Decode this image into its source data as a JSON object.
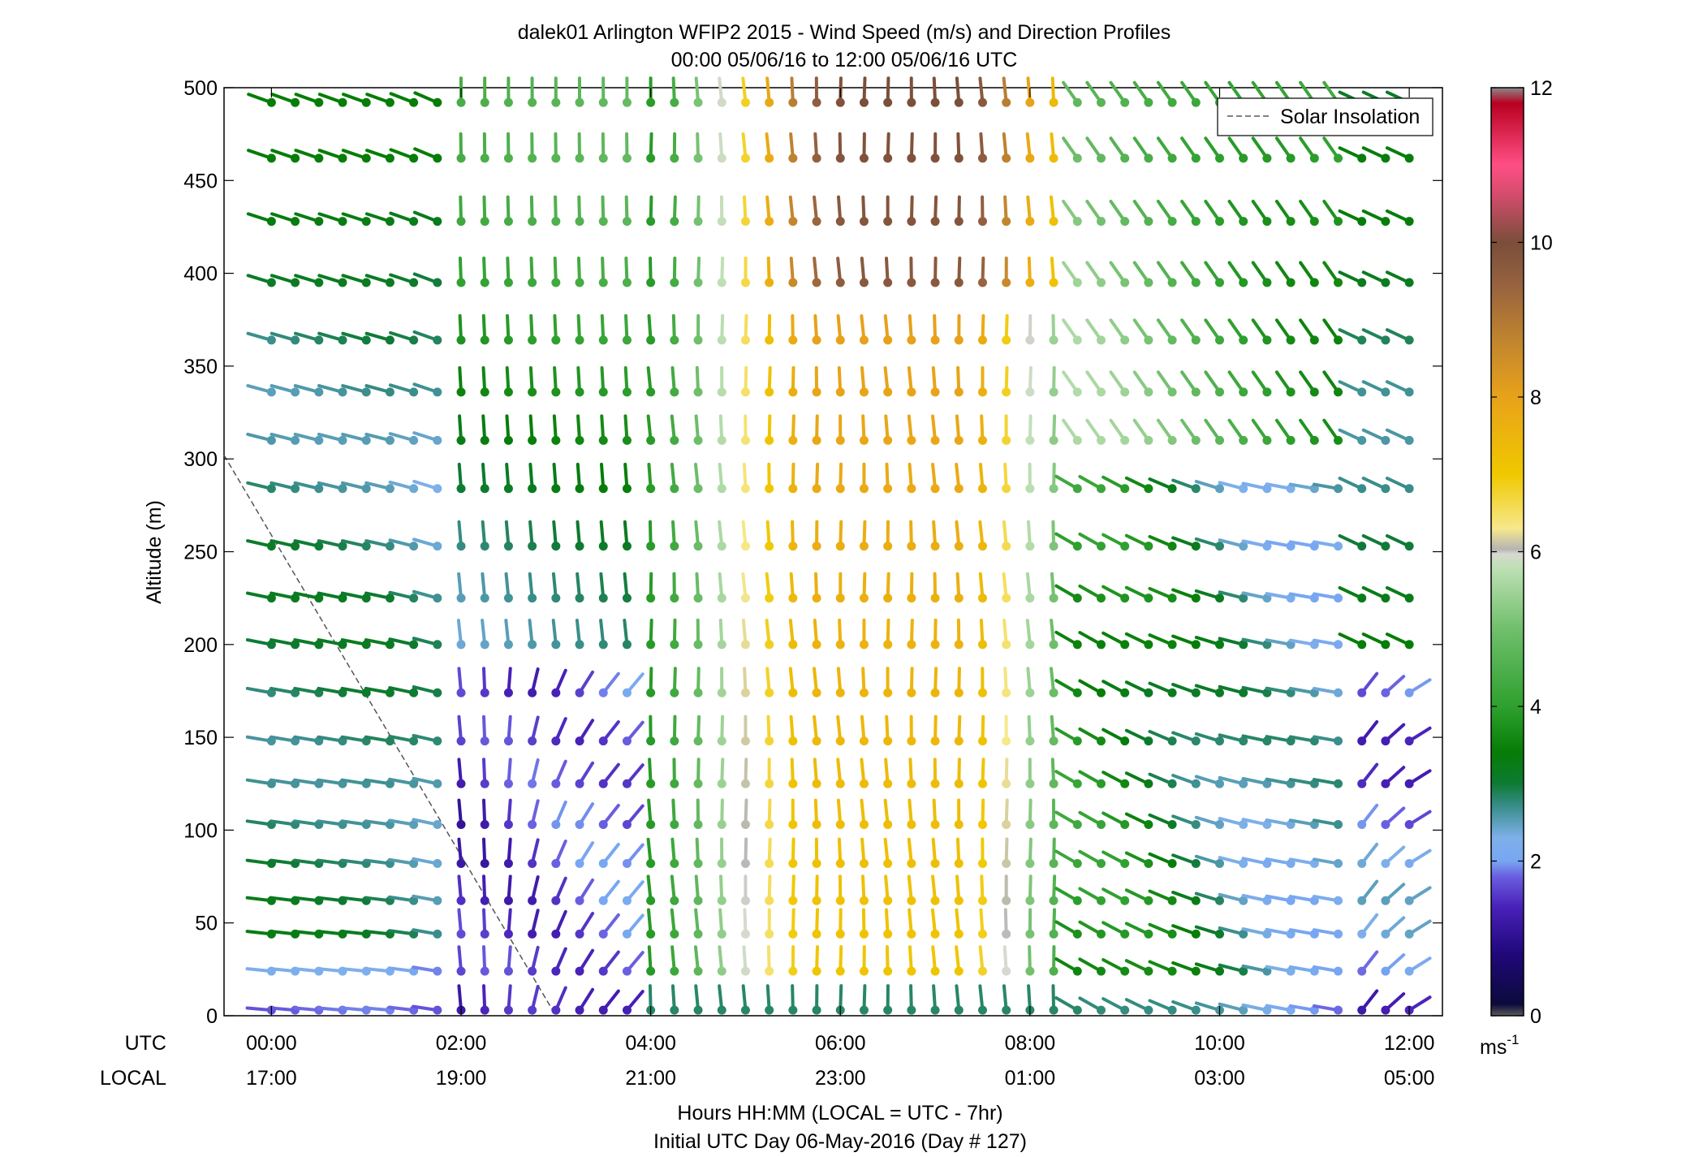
{
  "chart_data": {
    "type": "wind-barb-profile",
    "title": "dalek01 Arlington WFIP2 2015 - Wind Speed (m/s) and Direction Profiles",
    "subtitle": "00:00 05/06/16 to 12:00 05/06/16  UTC",
    "ylabel": "Altitude (m)",
    "xlabel": "Hours HH:MM  (LOCAL = UTC - 7hr)",
    "xlabel2": "Initial UTC Day 06-May-2016 (Day # 127)",
    "utc_label": "UTC",
    "local_label": "LOCAL",
    "x_ticks": [
      {
        "hours": 0,
        "utc": "00:00",
        "local": "17:00"
      },
      {
        "hours": 2,
        "utc": "02:00",
        "local": "19:00"
      },
      {
        "hours": 4,
        "utc": "04:00",
        "local": "21:00"
      },
      {
        "hours": 6,
        "utc": "06:00",
        "local": "23:00"
      },
      {
        "hours": 8,
        "utc": "08:00",
        "local": "01:00"
      },
      {
        "hours": 10,
        "utc": "10:00",
        "local": "03:00"
      },
      {
        "hours": 12,
        "utc": "12:00",
        "local": "05:00"
      }
    ],
    "xlim_hours": [
      -0.5,
      12.35
    ],
    "y_ticks": [
      "0",
      "50",
      "100",
      "150",
      "200",
      "250",
      "300",
      "350",
      "400",
      "450",
      "500"
    ],
    "ylim": [
      0,
      500
    ],
    "altitudes": [
      3,
      24,
      44,
      62,
      82,
      103,
      125,
      148,
      174,
      200,
      225,
      253,
      284,
      310,
      336,
      364,
      395,
      428,
      462,
      492
    ],
    "time_step_minutes": 15,
    "time_start_hours": 0,
    "time_count": 49,
    "colorbar": {
      "min": 0,
      "max": 12,
      "ticks": [
        "0",
        "2",
        "4",
        "6",
        "8",
        "10",
        "12"
      ],
      "unit_label": "ms",
      "unit_superscript": "-1",
      "stops": [
        {
          "v": 0,
          "c": "#5a5a5a"
        },
        {
          "v": 0.15,
          "c": "#0c0a3c"
        },
        {
          "v": 0.8,
          "c": "#20087a"
        },
        {
          "v": 1.4,
          "c": "#4820b8"
        },
        {
          "v": 1.8,
          "c": "#6a5ee0"
        },
        {
          "v": 2.0,
          "c": "#78a6f2"
        },
        {
          "v": 2.3,
          "c": "#7eb0ea"
        },
        {
          "v": 2.7,
          "c": "#3a8e8c"
        },
        {
          "v": 3.0,
          "c": "#0e7a34"
        },
        {
          "v": 3.4,
          "c": "#067d06"
        },
        {
          "v": 4.0,
          "c": "#2ea02e"
        },
        {
          "v": 5.0,
          "c": "#70bf6c"
        },
        {
          "v": 5.8,
          "c": "#bfe0b5"
        },
        {
          "v": 5.97,
          "c": "#d8d8d0"
        },
        {
          "v": 6.03,
          "c": "#b4b4b4"
        },
        {
          "v": 6.3,
          "c": "#f7e88c"
        },
        {
          "v": 7.0,
          "c": "#f0c800"
        },
        {
          "v": 8.0,
          "c": "#e8a21a"
        },
        {
          "v": 8.7,
          "c": "#c2862e"
        },
        {
          "v": 9.5,
          "c": "#946040"
        },
        {
          "v": 10.0,
          "c": "#7a4e3a"
        },
        {
          "v": 10.6,
          "c": "#d24c6c"
        },
        {
          "v": 11.0,
          "c": "#ff4f84"
        },
        {
          "v": 11.8,
          "c": "#b80020"
        },
        {
          "v": 12,
          "c": "#8a8a8a"
        }
      ]
    },
    "legend": {
      "label": "Solar Insolation",
      "placement": "top-right",
      "line_style": "dashed",
      "color": "#555555"
    },
    "solar_insolation": {
      "x_hours": [
        -0.5,
        3.0
      ],
      "y": [
        302,
        0
      ]
    }
  }
}
